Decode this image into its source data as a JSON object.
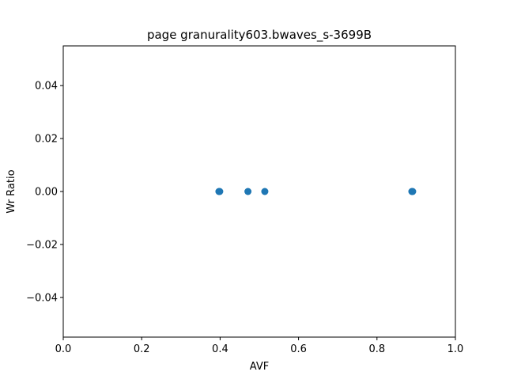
{
  "chart_data": {
    "type": "scatter",
    "title": "page granurality603.bwaves_s-3699B",
    "xlabel": "AVF",
    "ylabel": "Wr Ratio",
    "xlim": [
      0.0,
      1.0
    ],
    "ylim": [
      -0.055,
      0.055
    ],
    "x_ticks": [
      0.0,
      0.2,
      0.4,
      0.6,
      0.8,
      1.0
    ],
    "x_tick_labels": [
      "0.0",
      "0.2",
      "0.4",
      "0.6",
      "0.8",
      "1.0"
    ],
    "y_ticks": [
      -0.04,
      -0.02,
      0.0,
      0.02,
      0.04
    ],
    "y_tick_labels": [
      "−0.04",
      "−0.02",
      "0.00",
      "0.02",
      "0.04"
    ],
    "grid": false,
    "series": [
      {
        "color": "#1f77b4",
        "points": [
          {
            "x": 0.397,
            "y": 0.0
          },
          {
            "x": 0.399,
            "y": 0.0
          },
          {
            "x": 0.471,
            "y": 0.0
          },
          {
            "x": 0.514,
            "y": 0.0
          },
          {
            "x": 0.889,
            "y": 0.0
          },
          {
            "x": 0.891,
            "y": 0.0
          }
        ]
      }
    ]
  }
}
